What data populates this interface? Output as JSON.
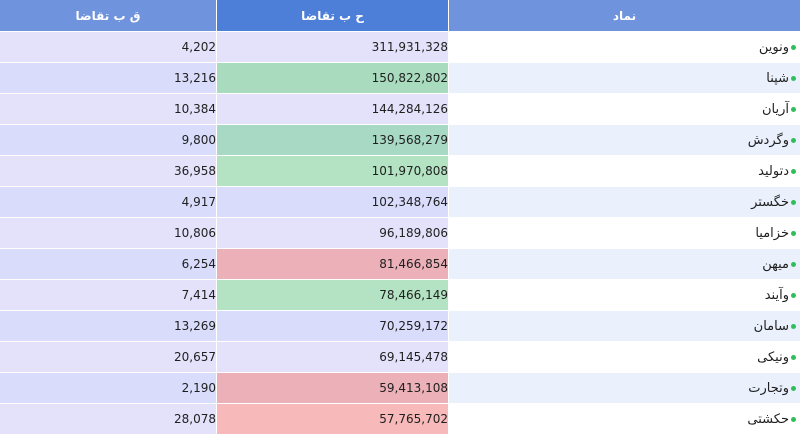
{
  "headers": {
    "symbol": "نماد",
    "buy_volume": "ح ب تقاضا",
    "buy_count": "ق ب تقاضا"
  },
  "colors": {
    "header_dark": "#4e7fd8",
    "header_light": "#6f93dc",
    "status_dot": "#2fbf5a"
  },
  "rows": [
    {
      "symbol": "ونوین",
      "volume": "311,931,328",
      "count": "4,202",
      "vol_bg": "#e4e2fa"
    },
    {
      "symbol": "شپنا",
      "volume": "150,822,802",
      "count": "13,216",
      "vol_bg": "#a9dcbf"
    },
    {
      "symbol": "آریان",
      "volume": "144,284,126",
      "count": "10,384",
      "vol_bg": "#e4e2fa"
    },
    {
      "symbol": "وگردش",
      "volume": "139,568,279",
      "count": "9,800",
      "vol_bg": "#a7d9c4"
    },
    {
      "symbol": "دتولید",
      "volume": "101,970,808",
      "count": "36,958",
      "vol_bg": "#b3e3c2"
    },
    {
      "symbol": "خگستر",
      "volume": "102,348,764",
      "count": "4,917",
      "vol_bg": "#d9dcfb"
    },
    {
      "symbol": "خزامیا",
      "volume": "96,189,806",
      "count": "10,806",
      "vol_bg": "#e4e2fa"
    },
    {
      "symbol": "میهن",
      "volume": "81,466,854",
      "count": "6,254",
      "vol_bg": "#ebb0b8"
    },
    {
      "symbol": "وآیند",
      "volume": "78,466,149",
      "count": "7,414",
      "vol_bg": "#b3e3c2"
    },
    {
      "symbol": "سامان",
      "volume": "70,259,172",
      "count": "13,269",
      "vol_bg": "#d9dcfb"
    },
    {
      "symbol": "ونیکی",
      "volume": "69,145,478",
      "count": "20,657",
      "vol_bg": "#e4e2fa"
    },
    {
      "symbol": "وتجارت",
      "volume": "59,413,108",
      "count": "2,190",
      "vol_bg": "#ebb0b8"
    },
    {
      "symbol": "حکشتی",
      "volume": "57,765,702",
      "count": "28,078",
      "vol_bg": "#f7b9b9"
    }
  ]
}
